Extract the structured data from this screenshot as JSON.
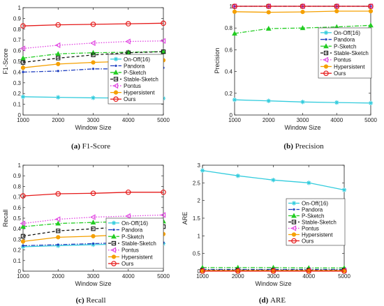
{
  "legend_entries": [
    "On-Off(16)",
    "Pandora",
    "P-Sketch",
    "Stable-Sketch",
    "Pontus",
    "Hypersistent",
    "Ours"
  ],
  "chart_data": [
    {
      "type": "line",
      "caption_letter": "(a)",
      "caption_text": "F1-Score",
      "xlabel": "Window Size",
      "ylabel": "F1-Score",
      "x": [
        1000,
        2000,
        3000,
        4000,
        5000
      ],
      "ylim": [
        0,
        1
      ],
      "yticks": [
        "0",
        "0.1",
        "0.2",
        "0.3",
        "0.4",
        "0.5",
        "0.6",
        "0.7",
        "0.8",
        "0.9",
        "1"
      ],
      "legend_position": "bottom-right",
      "series": [
        {
          "name": "On-Off(16)",
          "color": "#33ccdd",
          "dash": "",
          "marker": "star",
          "values": [
            0.17,
            0.165,
            0.16,
            0.158,
            0.155
          ]
        },
        {
          "name": "Pandora",
          "color": "#1f3fbf",
          "dash": "6,2,1.5,2",
          "marker": "dot",
          "values": [
            0.4,
            0.41,
            0.43,
            0.43,
            0.44
          ]
        },
        {
          "name": "P-Sketch",
          "color": "#22cc22",
          "dash": "6,2,1.5,2",
          "marker": "triangle-up",
          "values": [
            0.53,
            0.57,
            0.58,
            0.585,
            0.59
          ]
        },
        {
          "name": "Stable-Sketch",
          "color": "#111111",
          "dash": "4,3",
          "marker": "square",
          "values": [
            0.49,
            0.53,
            0.56,
            0.58,
            0.59
          ]
        },
        {
          "name": "Pontus",
          "color": "#e040e0",
          "dash": "1.5,2",
          "marker": "triangle-left",
          "values": [
            0.62,
            0.65,
            0.67,
            0.685,
            0.69
          ]
        },
        {
          "name": "Hypersistent",
          "color": "#f5a000",
          "dash": "",
          "marker": "dot-filled",
          "values": [
            0.44,
            0.475,
            0.49,
            0.5,
            0.51
          ]
        },
        {
          "name": "Ours",
          "color": "#e51919",
          "dash": "",
          "marker": "circle",
          "values": [
            0.83,
            0.84,
            0.845,
            0.85,
            0.855
          ]
        }
      ]
    },
    {
      "type": "line",
      "caption_letter": "(b)",
      "caption_text": "Precision",
      "xlabel": "Window Size",
      "ylabel": "Precision",
      "x": [
        1000,
        2000,
        3000,
        4000,
        5000
      ],
      "ylim": [
        0,
        1
      ],
      "yticks": [
        "0",
        "0.2",
        "0.4",
        "0.6",
        "0.8",
        "1"
      ],
      "legend_position": "center-right",
      "series": [
        {
          "name": "On-Off(16)",
          "color": "#33ccdd",
          "dash": "",
          "marker": "star",
          "values": [
            0.14,
            0.13,
            0.12,
            0.115,
            0.11
          ]
        },
        {
          "name": "Pandora",
          "color": "#1f3fbf",
          "dash": "6,2,1.5,2",
          "marker": "dot",
          "values": [
            1.0,
            1.0,
            1.0,
            1.0,
            1.0
          ]
        },
        {
          "name": "P-Sketch",
          "color": "#22cc22",
          "dash": "6,2,1.5,2",
          "marker": "triangle-up",
          "values": [
            0.75,
            0.795,
            0.8,
            0.81,
            0.825
          ]
        },
        {
          "name": "Stable-Sketch",
          "color": "#111111",
          "dash": "4,3",
          "marker": "square",
          "values": [
            1.0,
            1.0,
            1.0,
            1.0,
            1.0
          ]
        },
        {
          "name": "Pontus",
          "color": "#e040e0",
          "dash": "1.5,2",
          "marker": "triangle-left",
          "values": [
            1.0,
            1.0,
            1.0,
            1.0,
            1.0
          ]
        },
        {
          "name": "Hypersistent",
          "color": "#f5a000",
          "dash": "",
          "marker": "dot-filled",
          "values": [
            0.95,
            0.945,
            0.948,
            0.955,
            0.955
          ]
        },
        {
          "name": "Ours",
          "color": "#e51919",
          "dash": "",
          "marker": "circle",
          "values": [
            1.0,
            1.0,
            1.0,
            1.0,
            1.0
          ]
        }
      ]
    },
    {
      "type": "line",
      "caption_letter": "(c)",
      "caption_text": "Recall",
      "xlabel": "Window Size",
      "ylabel": "Recall",
      "x": [
        1000,
        2000,
        3000,
        4000,
        5000
      ],
      "ylim": [
        0,
        1
      ],
      "yticks": [
        "0",
        "0.1",
        "0.2",
        "0.3",
        "0.4",
        "0.5",
        "0.6",
        "0.7",
        "0.8",
        "0.9",
        "1"
      ],
      "legend_position": "bottom-right",
      "series": [
        {
          "name": "On-Off(16)",
          "color": "#33ccdd",
          "dash": "",
          "marker": "star",
          "values": [
            0.23,
            0.24,
            0.25,
            0.255,
            0.26
          ]
        },
        {
          "name": "Pandora",
          "color": "#1f3fbf",
          "dash": "6,2,1.5,2",
          "marker": "dot",
          "values": [
            0.24,
            0.25,
            0.26,
            0.27,
            0.27
          ]
        },
        {
          "name": "P-Sketch",
          "color": "#22cc22",
          "dash": "6,2,1.5,2",
          "marker": "triangle-up",
          "values": [
            0.42,
            0.45,
            0.46,
            0.47,
            0.47
          ]
        },
        {
          "name": "Stable-Sketch",
          "color": "#111111",
          "dash": "4,3",
          "marker": "square",
          "values": [
            0.33,
            0.38,
            0.4,
            0.42,
            0.42
          ]
        },
        {
          "name": "Pontus",
          "color": "#e040e0",
          "dash": "1.5,2",
          "marker": "triangle-left",
          "values": [
            0.45,
            0.49,
            0.51,
            0.52,
            0.53
          ]
        },
        {
          "name": "Hypersistent",
          "color": "#f5a000",
          "dash": "",
          "marker": "dot-filled",
          "values": [
            0.28,
            0.32,
            0.33,
            0.345,
            0.35
          ]
        },
        {
          "name": "Ours",
          "color": "#e51919",
          "dash": "",
          "marker": "circle",
          "values": [
            0.71,
            0.73,
            0.735,
            0.745,
            0.745
          ]
        }
      ]
    },
    {
      "type": "line",
      "caption_letter": "(d)",
      "caption_text": "ARE",
      "xlabel": "Window Size",
      "ylabel": "ARE",
      "x": [
        1000,
        2000,
        3000,
        4000,
        5000
      ],
      "ylim": [
        0,
        3
      ],
      "yticks": [
        "0",
        "0.5",
        "1",
        "1.5",
        "2",
        "2.5",
        "3"
      ],
      "legend_position": "center-right",
      "series": [
        {
          "name": "On-Off(16)",
          "color": "#33ccdd",
          "dash": "",
          "marker": "star",
          "values": [
            2.85,
            2.7,
            2.58,
            2.5,
            2.3
          ]
        },
        {
          "name": "Pandora",
          "color": "#1f3fbf",
          "dash": "6,2,1.5,2",
          "marker": "dot",
          "values": [
            0.05,
            0.05,
            0.05,
            0.05,
            0.05
          ]
        },
        {
          "name": "P-Sketch",
          "color": "#22cc22",
          "dash": "6,2,1.5,2",
          "marker": "triangle-up",
          "values": [
            0.1,
            0.1,
            0.1,
            0.09,
            0.09
          ]
        },
        {
          "name": "Stable-Sketch",
          "color": "#111111",
          "dash": "4,3",
          "marker": "square",
          "values": [
            0.03,
            0.03,
            0.03,
            0.03,
            0.03
          ]
        },
        {
          "name": "Pontus",
          "color": "#e040e0",
          "dash": "1.5,2",
          "marker": "triangle-left",
          "values": [
            0.02,
            0.02,
            0.02,
            0.02,
            0.02
          ]
        },
        {
          "name": "Hypersistent",
          "color": "#f5a000",
          "dash": "",
          "marker": "dot-filled",
          "values": [
            0.015,
            0.015,
            0.015,
            0.015,
            0.015
          ]
        },
        {
          "name": "Ours",
          "color": "#e51919",
          "dash": "",
          "marker": "circle",
          "values": [
            0.0,
            0.0,
            0.0,
            0.0,
            0.0
          ]
        }
      ]
    }
  ]
}
